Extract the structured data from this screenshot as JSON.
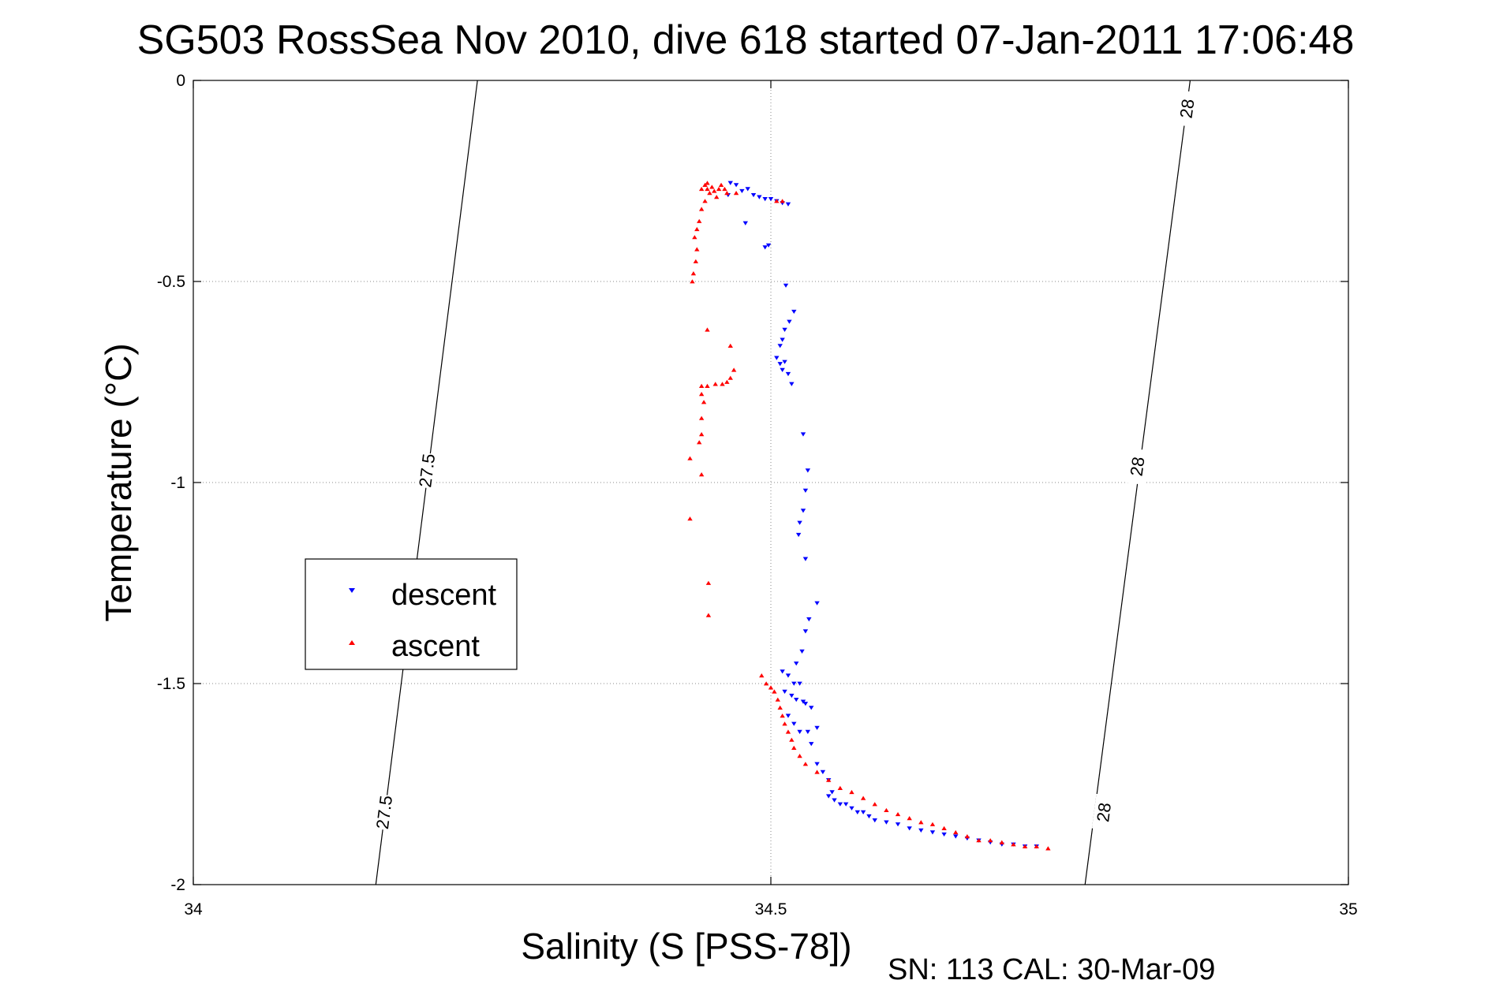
{
  "chart_data": {
    "type": "scatter",
    "title": "SG503 RossSea Nov 2010, dive 618 started 07-Jan-2011 17:06:48",
    "xlabel": "Salinity (S [PSS-78])",
    "ylabel": "Temperature (°C)",
    "xlim": [
      34,
      35
    ],
    "ylim": [
      -2,
      0
    ],
    "xticks": [
      34,
      34.5,
      35
    ],
    "xtick_labels": [
      "34",
      "34.5",
      "35"
    ],
    "yticks": [
      0,
      -0.5,
      -1,
      -1.5,
      -2
    ],
    "ytick_labels": [
      "0",
      "-0.5",
      "-1",
      "-1.5",
      "-2"
    ],
    "grid": true,
    "legend_position": "middle-left",
    "footer": "SN: 113  CAL: 30-Mar-09",
    "density_contours": [
      {
        "label": "27.5",
        "points": [
          [
            34.246,
            0
          ],
          [
            34.158,
            -2
          ]
        ],
        "label_positions": [
          [
            34.202,
            -0.97
          ],
          [
            34.165,
            -1.82
          ]
        ]
      },
      {
        "label": "28",
        "points": [
          [
            34.863,
            0
          ],
          [
            34.772,
            -2
          ]
        ],
        "label_positions": [
          [
            34.86,
            -0.07
          ],
          [
            34.817,
            -0.96
          ],
          [
            34.788,
            -1.82
          ]
        ]
      }
    ],
    "series": [
      {
        "name": "descent",
        "color": "#0000ff",
        "marker": "triangle-down",
        "points": [
          [
            34.465,
            -0.255
          ],
          [
            34.47,
            -0.26
          ],
          [
            34.475,
            -0.275
          ],
          [
            34.48,
            -0.27
          ],
          [
            34.485,
            -0.285
          ],
          [
            34.49,
            -0.29
          ],
          [
            34.495,
            -0.295
          ],
          [
            34.5,
            -0.295
          ],
          [
            34.505,
            -0.3
          ],
          [
            34.51,
            -0.305
          ],
          [
            34.515,
            -0.308
          ],
          [
            34.463,
            -0.285
          ],
          [
            34.478,
            -0.355
          ],
          [
            34.495,
            -0.415
          ],
          [
            34.498,
            -0.41
          ],
          [
            34.513,
            -0.51
          ],
          [
            34.52,
            -0.575
          ],
          [
            34.516,
            -0.6
          ],
          [
            34.512,
            -0.62
          ],
          [
            34.51,
            -0.645
          ],
          [
            34.508,
            -0.66
          ],
          [
            34.505,
            -0.69
          ],
          [
            34.508,
            -0.705
          ],
          [
            34.512,
            -0.7
          ],
          [
            34.51,
            -0.72
          ],
          [
            34.515,
            -0.73
          ],
          [
            34.518,
            -0.755
          ],
          [
            34.528,
            -0.88
          ],
          [
            34.532,
            -0.97
          ],
          [
            34.53,
            -1.02
          ],
          [
            34.528,
            -1.07
          ],
          [
            34.525,
            -1.1
          ],
          [
            34.524,
            -1.13
          ],
          [
            34.53,
            -1.19
          ],
          [
            34.54,
            -1.3
          ],
          [
            34.533,
            -1.34
          ],
          [
            34.53,
            -1.37
          ],
          [
            34.527,
            -1.42
          ],
          [
            34.522,
            -1.45
          ],
          [
            34.51,
            -1.47
          ],
          [
            34.515,
            -1.48
          ],
          [
            34.52,
            -1.5
          ],
          [
            34.525,
            -1.5
          ],
          [
            34.512,
            -1.52
          ],
          [
            34.518,
            -1.53
          ],
          [
            34.522,
            -1.54
          ],
          [
            34.528,
            -1.545
          ],
          [
            34.53,
            -1.55
          ],
          [
            34.535,
            -1.56
          ],
          [
            34.515,
            -1.58
          ],
          [
            34.52,
            -1.6
          ],
          [
            34.525,
            -1.62
          ],
          [
            34.532,
            -1.62
          ],
          [
            34.54,
            -1.61
          ],
          [
            34.535,
            -1.65
          ],
          [
            34.54,
            -1.7
          ],
          [
            34.545,
            -1.72
          ],
          [
            34.55,
            -1.74
          ],
          [
            34.553,
            -1.77
          ],
          [
            34.55,
            -1.78
          ],
          [
            34.555,
            -1.79
          ],
          [
            34.56,
            -1.8
          ],
          [
            34.565,
            -1.8
          ],
          [
            34.57,
            -1.81
          ],
          [
            34.575,
            -1.82
          ],
          [
            34.58,
            -1.82
          ],
          [
            34.585,
            -1.83
          ],
          [
            34.59,
            -1.84
          ],
          [
            34.6,
            -1.845
          ],
          [
            34.61,
            -1.85
          ],
          [
            34.62,
            -1.86
          ],
          [
            34.63,
            -1.865
          ],
          [
            34.64,
            -1.87
          ],
          [
            34.65,
            -1.875
          ],
          [
            34.66,
            -1.88
          ],
          [
            34.67,
            -1.885
          ],
          [
            34.68,
            -1.89
          ],
          [
            34.69,
            -1.895
          ],
          [
            34.7,
            -1.9
          ],
          [
            34.71,
            -1.9
          ],
          [
            34.72,
            -1.905
          ],
          [
            34.73,
            -1.905
          ]
        ]
      },
      {
        "name": "ascent",
        "color": "#ff0000",
        "marker": "triangle-up",
        "points": [
          [
            34.44,
            -0.27
          ],
          [
            34.443,
            -0.26
          ],
          [
            34.445,
            -0.27
          ],
          [
            34.447,
            -0.28
          ],
          [
            34.449,
            -0.265
          ],
          [
            34.451,
            -0.275
          ],
          [
            34.453,
            -0.29
          ],
          [
            34.455,
            -0.27
          ],
          [
            34.457,
            -0.26
          ],
          [
            34.46,
            -0.27
          ],
          [
            34.462,
            -0.28
          ],
          [
            34.47,
            -0.28
          ],
          [
            34.505,
            -0.3
          ],
          [
            34.51,
            -0.3
          ],
          [
            34.445,
            -0.255
          ],
          [
            34.443,
            -0.3
          ],
          [
            34.44,
            -0.32
          ],
          [
            34.438,
            -0.35
          ],
          [
            34.436,
            -0.37
          ],
          [
            34.434,
            -0.39
          ],
          [
            34.436,
            -0.42
          ],
          [
            34.435,
            -0.45
          ],
          [
            34.433,
            -0.48
          ],
          [
            34.432,
            -0.5
          ],
          [
            34.445,
            -0.62
          ],
          [
            34.465,
            -0.66
          ],
          [
            34.468,
            -0.72
          ],
          [
            34.465,
            -0.74
          ],
          [
            34.462,
            -0.75
          ],
          [
            34.458,
            -0.755
          ],
          [
            34.452,
            -0.755
          ],
          [
            34.445,
            -0.76
          ],
          [
            34.44,
            -0.76
          ],
          [
            34.44,
            -0.78
          ],
          [
            34.442,
            -0.8
          ],
          [
            34.44,
            -0.84
          ],
          [
            34.44,
            -0.88
          ],
          [
            34.438,
            -0.9
          ],
          [
            34.43,
            -0.94
          ],
          [
            34.44,
            -0.98
          ],
          [
            34.43,
            -1.09
          ],
          [
            34.446,
            -1.25
          ],
          [
            34.446,
            -1.33
          ],
          [
            34.492,
            -1.48
          ],
          [
            34.496,
            -1.5
          ],
          [
            34.5,
            -1.51
          ],
          [
            34.503,
            -1.52
          ],
          [
            34.506,
            -1.54
          ],
          [
            34.508,
            -1.56
          ],
          [
            34.51,
            -1.58
          ],
          [
            34.512,
            -1.6
          ],
          [
            34.515,
            -1.62
          ],
          [
            34.518,
            -1.64
          ],
          [
            34.52,
            -1.66
          ],
          [
            34.525,
            -1.68
          ],
          [
            34.53,
            -1.7
          ],
          [
            34.54,
            -1.72
          ],
          [
            34.55,
            -1.74
          ],
          [
            34.56,
            -1.76
          ],
          [
            34.57,
            -1.77
          ],
          [
            34.58,
            -1.785
          ],
          [
            34.59,
            -1.8
          ],
          [
            34.6,
            -1.815
          ],
          [
            34.61,
            -1.825
          ],
          [
            34.62,
            -1.835
          ],
          [
            34.63,
            -1.845
          ],
          [
            34.64,
            -1.85
          ],
          [
            34.65,
            -1.86
          ],
          [
            34.66,
            -1.87
          ],
          [
            34.67,
            -1.88
          ],
          [
            34.68,
            -1.89
          ],
          [
            34.69,
            -1.89
          ],
          [
            34.7,
            -1.895
          ],
          [
            34.71,
            -1.9
          ],
          [
            34.72,
            -1.905
          ],
          [
            34.73,
            -1.905
          ],
          [
            34.74,
            -1.91
          ]
        ]
      }
    ]
  }
}
